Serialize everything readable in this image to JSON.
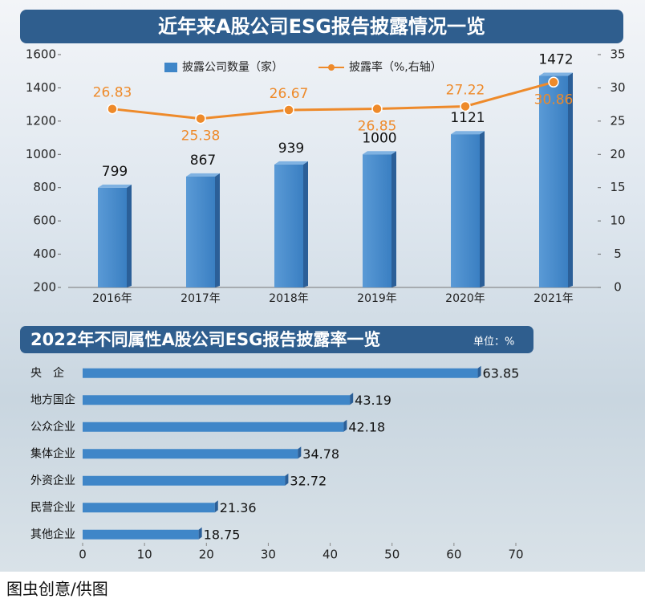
{
  "chart_data": [
    {
      "type": "combo",
      "title": "近年来A股公司ESG报告披露情况一览",
      "categories": [
        "2016年",
        "2017年",
        "2018年",
        "2019年",
        "2020年",
        "2021年"
      ],
      "series": [
        {
          "name": "披露公司数量（家）",
          "type": "bar",
          "color": "#3f86c8",
          "values": [
            799,
            867,
            939,
            1000,
            1121,
            1472
          ]
        },
        {
          "name": "披露率（%,右轴）",
          "type": "line",
          "axis": "y2",
          "color": "#ee8a2a",
          "values": [
            26.83,
            25.38,
            26.67,
            26.85,
            27.22,
            30.86
          ]
        }
      ],
      "ylim": [
        200,
        1600
      ],
      "yticks": [
        200,
        400,
        600,
        800,
        1000,
        1200,
        1400,
        1600
      ],
      "y2lim": [
        0,
        35
      ],
      "y2ticks": [
        0,
        5,
        10,
        15,
        20,
        25,
        30,
        35
      ],
      "legend": "top"
    },
    {
      "type": "hbar",
      "title": "2022年不同属性A股公司ESG报告披露率一览",
      "unit": "单位：%",
      "categories": [
        "央　企",
        "地方国企",
        "公众企业",
        "集体企业",
        "外资企业",
        "民营企业",
        "其他企业"
      ],
      "values": [
        63.85,
        43.19,
        42.18,
        34.78,
        32.72,
        21.36,
        18.75
      ],
      "color": "#3f86c8",
      "xlim": [
        0,
        70
      ],
      "xticks": [
        0,
        10,
        20,
        30,
        40,
        50,
        60,
        70
      ]
    }
  ],
  "caption": "图虫创意/供图"
}
